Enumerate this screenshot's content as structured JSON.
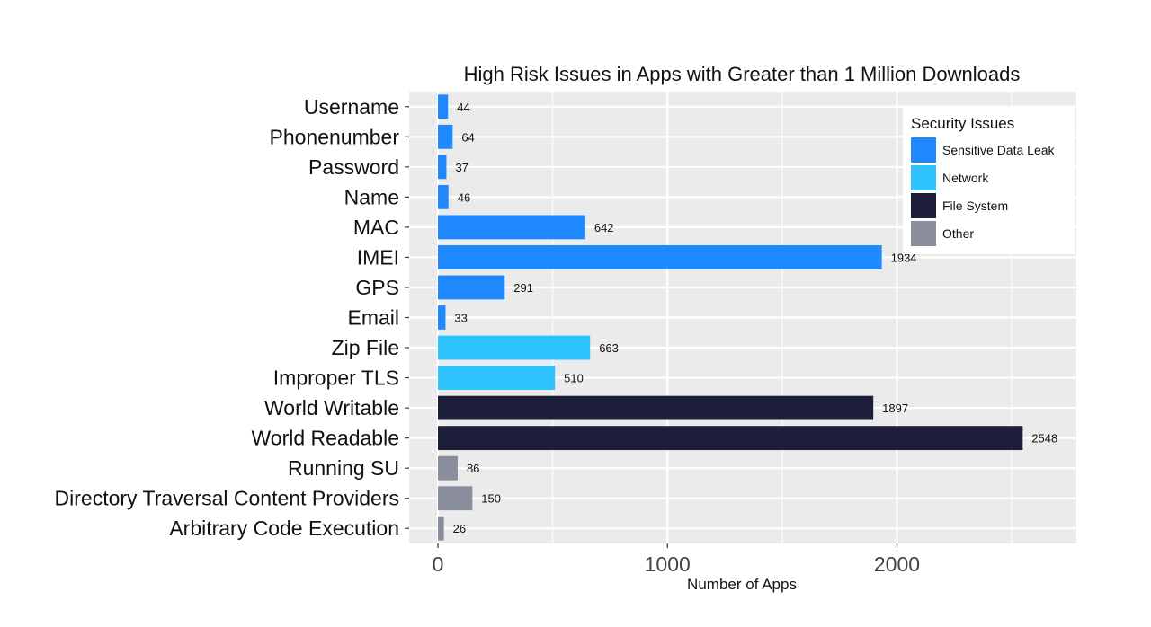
{
  "chart_data": {
    "type": "bar",
    "orientation": "horizontal",
    "title": "High Risk Issues in Apps with Greater than 1 Million Downloads",
    "xlabel": "Number of Apps",
    "ylabel": "",
    "xlim": [
      0,
      2800
    ],
    "x_ticks": [
      0,
      1000,
      2000
    ],
    "grid": true,
    "legend_position": "top-right",
    "legend_title": "Security Issues",
    "groups": [
      {
        "name": "Sensitive Data Leak",
        "color": "#1E88FF"
      },
      {
        "name": "Network",
        "color": "#2EC2FF"
      },
      {
        "name": "File System",
        "color": "#1C1E3A"
      },
      {
        "name": "Other",
        "color": "#8A8D9C"
      }
    ],
    "bars": [
      {
        "category": "Username",
        "value": 44,
        "group": "Sensitive Data Leak"
      },
      {
        "category": "Phonenumber",
        "value": 64,
        "group": "Sensitive Data Leak"
      },
      {
        "category": "Password",
        "value": 37,
        "group": "Sensitive Data Leak"
      },
      {
        "category": "Name",
        "value": 46,
        "group": "Sensitive Data Leak"
      },
      {
        "category": "MAC",
        "value": 642,
        "group": "Sensitive Data Leak"
      },
      {
        "category": "IMEI",
        "value": 1934,
        "group": "Sensitive Data Leak"
      },
      {
        "category": "GPS",
        "value": 291,
        "group": "Sensitive Data Leak"
      },
      {
        "category": "Email",
        "value": 33,
        "group": "Sensitive Data Leak"
      },
      {
        "category": "Zip File",
        "value": 663,
        "group": "Network"
      },
      {
        "category": "Improper TLS",
        "value": 510,
        "group": "Network"
      },
      {
        "category": "World Writable",
        "value": 1897,
        "group": "File System"
      },
      {
        "category": "World Readable",
        "value": 2548,
        "group": "File System"
      },
      {
        "category": "Running SU",
        "value": 86,
        "group": "Other"
      },
      {
        "category": "Directory Traversal Content Providers",
        "value": 150,
        "group": "Other"
      },
      {
        "category": "Arbitrary Code Execution",
        "value": 26,
        "group": "Other"
      }
    ]
  },
  "colors": {
    "panel_background": "#EBEBEB",
    "grid_line": "#FFFFFF"
  }
}
